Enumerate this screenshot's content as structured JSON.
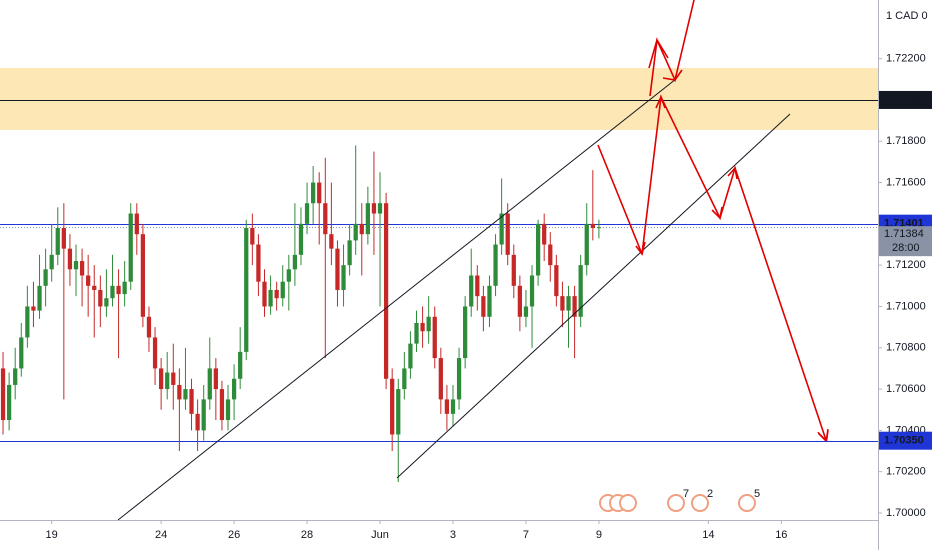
{
  "chart_data": {
    "type": "candlestick",
    "scale_label": "1 CAD 0",
    "xlim": [
      -0.5,
      143.9
    ],
    "ylim": [
      1.69966,
      1.72484
    ],
    "xticks": [
      {
        "value": 8,
        "label": "19"
      },
      {
        "value": 26,
        "label": "24"
      },
      {
        "value": 38,
        "label": "26"
      },
      {
        "value": 50,
        "label": "28"
      },
      {
        "value": 62,
        "label": "Jun"
      },
      {
        "value": 74,
        "label": "3"
      },
      {
        "value": 86,
        "label": "7"
      },
      {
        "value": 98,
        "label": "9"
      },
      {
        "value": 116,
        "label": "14"
      },
      {
        "value": 128,
        "label": "16"
      }
    ],
    "yticks": [
      {
        "value": 1.7,
        "label": "1.70000"
      },
      {
        "value": 1.702,
        "label": "1.70200"
      },
      {
        "value": 1.704,
        "label": "1.70400"
      },
      {
        "value": 1.706,
        "label": "1.70600"
      },
      {
        "value": 1.708,
        "label": "1.70800"
      },
      {
        "value": 1.71,
        "label": "1.71000"
      },
      {
        "value": 1.712,
        "label": "1.71200"
      },
      {
        "value": 1.716,
        "label": "1.71600"
      },
      {
        "value": 1.718,
        "label": "1.71800"
      },
      {
        "value": 1.722,
        "label": "1.72200"
      }
    ],
    "grid": false,
    "up_color": "#2e8b3a",
    "down_color": "#c62828",
    "price_lines": [
      {
        "value": 1.72,
        "label": "1.72000",
        "color": "#131722"
      },
      {
        "value": 1.71401,
        "label": "1.71401",
        "color": "#1f35d6"
      },
      {
        "value": 1.7035,
        "label": "1.70350",
        "color": "#1f35d6"
      }
    ],
    "last_price": {
      "value": 1.71384,
      "label": "1.71384",
      "countdown": "28:00",
      "color": "#8a93a6"
    },
    "event_counts": [
      7,
      2,
      5
    ],
    "candles": [
      [
        1.707,
        1.7078,
        1.7038,
        1.7045
      ],
      [
        1.7045,
        1.7068,
        1.704,
        1.7062
      ],
      [
        1.7062,
        1.708,
        1.7055,
        1.707
      ],
      [
        1.707,
        1.7092,
        1.7066,
        1.7085
      ],
      [
        1.7085,
        1.711,
        1.708,
        1.71
      ],
      [
        1.71,
        1.7112,
        1.709,
        1.7098
      ],
      [
        1.7098,
        1.7125,
        1.7094,
        1.711
      ],
      [
        1.711,
        1.7128,
        1.71,
        1.7118
      ],
      [
        1.7118,
        1.714,
        1.7112,
        1.7125
      ],
      [
        1.7125,
        1.7148,
        1.712,
        1.7138
      ],
      [
        1.7138,
        1.715,
        1.7055,
        1.7128
      ],
      [
        1.7128,
        1.7135,
        1.711,
        1.7118
      ],
      [
        1.7118,
        1.713,
        1.7105,
        1.7122
      ],
      [
        1.7122,
        1.7128,
        1.71,
        1.7115
      ],
      [
        1.7115,
        1.7125,
        1.7095,
        1.711
      ],
      [
        1.711,
        1.712,
        1.7085,
        1.7108
      ],
      [
        1.7108,
        1.7115,
        1.709,
        1.71
      ],
      [
        1.71,
        1.7118,
        1.7095,
        1.7104
      ],
      [
        1.7104,
        1.7125,
        1.71,
        1.711
      ],
      [
        1.711,
        1.7118,
        1.7075,
        1.7106
      ],
      [
        1.7106,
        1.7122,
        1.71,
        1.7112
      ],
      [
        1.7112,
        1.715,
        1.7108,
        1.7145
      ],
      [
        1.7145,
        1.715,
        1.7125,
        1.7135
      ],
      [
        1.7135,
        1.714,
        1.709,
        1.7095
      ],
      [
        1.7095,
        1.71,
        1.7078,
        1.7085
      ],
      [
        1.7085,
        1.709,
        1.7062,
        1.707
      ],
      [
        1.707,
        1.7075,
        1.705,
        1.706
      ],
      [
        1.706,
        1.7078,
        1.7055,
        1.7068
      ],
      [
        1.7068,
        1.7082,
        1.705,
        1.7062
      ],
      [
        1.7062,
        1.707,
        1.703,
        1.7055
      ],
      [
        1.7055,
        1.708,
        1.705,
        1.706
      ],
      [
        1.706,
        1.7065,
        1.704,
        1.7048
      ],
      [
        1.7048,
        1.7055,
        1.703,
        1.704
      ],
      [
        1.704,
        1.7062,
        1.7035,
        1.7055
      ],
      [
        1.7055,
        1.7085,
        1.705,
        1.707
      ],
      [
        1.707,
        1.7075,
        1.7045,
        1.706
      ],
      [
        1.706,
        1.7064,
        1.704,
        1.7045
      ],
      [
        1.7045,
        1.7062,
        1.704,
        1.7055
      ],
      [
        1.7055,
        1.7072,
        1.7045,
        1.7065
      ],
      [
        1.7065,
        1.709,
        1.706,
        1.7078
      ],
      [
        1.7078,
        1.7142,
        1.7074,
        1.7138
      ],
      [
        1.7138,
        1.7145,
        1.712,
        1.713
      ],
      [
        1.713,
        1.7135,
        1.7105,
        1.7112
      ],
      [
        1.7112,
        1.7118,
        1.7095,
        1.71
      ],
      [
        1.71,
        1.7115,
        1.7096,
        1.7108
      ],
      [
        1.7108,
        1.7112,
        1.7098,
        1.7104
      ],
      [
        1.7104,
        1.712,
        1.71,
        1.7112
      ],
      [
        1.7112,
        1.7125,
        1.7098,
        1.7118
      ],
      [
        1.7118,
        1.715,
        1.711,
        1.7125
      ],
      [
        1.7125,
        1.7148,
        1.712,
        1.714
      ],
      [
        1.714,
        1.716,
        1.7135,
        1.715
      ],
      [
        1.715,
        1.7168,
        1.714,
        1.716
      ],
      [
        1.716,
        1.7165,
        1.713,
        1.715
      ],
      [
        1.715,
        1.7172,
        1.7075,
        1.7135
      ],
      [
        1.7135,
        1.716,
        1.712,
        1.7128
      ],
      [
        1.7128,
        1.7132,
        1.71,
        1.7108
      ],
      [
        1.7108,
        1.713,
        1.71,
        1.712
      ],
      [
        1.712,
        1.714,
        1.7115,
        1.7132
      ],
      [
        1.7132,
        1.7178,
        1.7125,
        1.714
      ],
      [
        1.714,
        1.715,
        1.7115,
        1.7135
      ],
      [
        1.7135,
        1.7158,
        1.713,
        1.715
      ],
      [
        1.715,
        1.7175,
        1.7125,
        1.7145
      ],
      [
        1.7145,
        1.7165,
        1.71,
        1.715
      ],
      [
        1.715,
        1.7155,
        1.706,
        1.7065
      ],
      [
        1.7065,
        1.707,
        1.703,
        1.7038
      ],
      [
        1.7038,
        1.7065,
        1.7015,
        1.706
      ],
      [
        1.706,
        1.7078,
        1.7055,
        1.707
      ],
      [
        1.707,
        1.7088,
        1.7065,
        1.7082
      ],
      [
        1.7082,
        1.7098,
        1.7078,
        1.7092
      ],
      [
        1.7092,
        1.71,
        1.708,
        1.7088
      ],
      [
        1.7088,
        1.7105,
        1.7082,
        1.7095
      ],
      [
        1.7095,
        1.71,
        1.707,
        1.7075
      ],
      [
        1.7075,
        1.708,
        1.7048,
        1.7055
      ],
      [
        1.7055,
        1.7062,
        1.704,
        1.7048
      ],
      [
        1.7048,
        1.7062,
        1.7042,
        1.7055
      ],
      [
        1.7055,
        1.708,
        1.705,
        1.7075
      ],
      [
        1.7075,
        1.7105,
        1.707,
        1.71
      ],
      [
        1.71,
        1.7128,
        1.7095,
        1.7115
      ],
      [
        1.7115,
        1.712,
        1.7098,
        1.7105
      ],
      [
        1.7105,
        1.711,
        1.7088,
        1.7095
      ],
      [
        1.7095,
        1.7115,
        1.709,
        1.711
      ],
      [
        1.711,
        1.7135,
        1.7105,
        1.713
      ],
      [
        1.713,
        1.7162,
        1.7125,
        1.7145
      ],
      [
        1.7145,
        1.715,
        1.712,
        1.7125
      ],
      [
        1.7125,
        1.713,
        1.7104,
        1.711
      ],
      [
        1.711,
        1.7115,
        1.7088,
        1.7095
      ],
      [
        1.7095,
        1.7108,
        1.709,
        1.71
      ],
      [
        1.71,
        1.712,
        1.708,
        1.7115
      ],
      [
        1.7115,
        1.7142,
        1.711,
        1.714
      ],
      [
        1.714,
        1.7145,
        1.7122,
        1.713
      ],
      [
        1.713,
        1.7136,
        1.7112,
        1.712
      ],
      [
        1.712,
        1.7125,
        1.71,
        1.7105
      ],
      [
        1.7105,
        1.7112,
        1.709,
        1.7098
      ],
      [
        1.7098,
        1.711,
        1.708,
        1.7105
      ],
      [
        1.7105,
        1.711,
        1.7075,
        1.7095
      ],
      [
        1.7095,
        1.7125,
        1.709,
        1.712
      ],
      [
        1.712,
        1.715,
        1.7115,
        1.714
      ],
      [
        1.714,
        1.7166,
        1.7132,
        1.7138
      ],
      [
        1.7138,
        1.7142,
        1.7133,
        1.71384
      ]
    ]
  }
}
